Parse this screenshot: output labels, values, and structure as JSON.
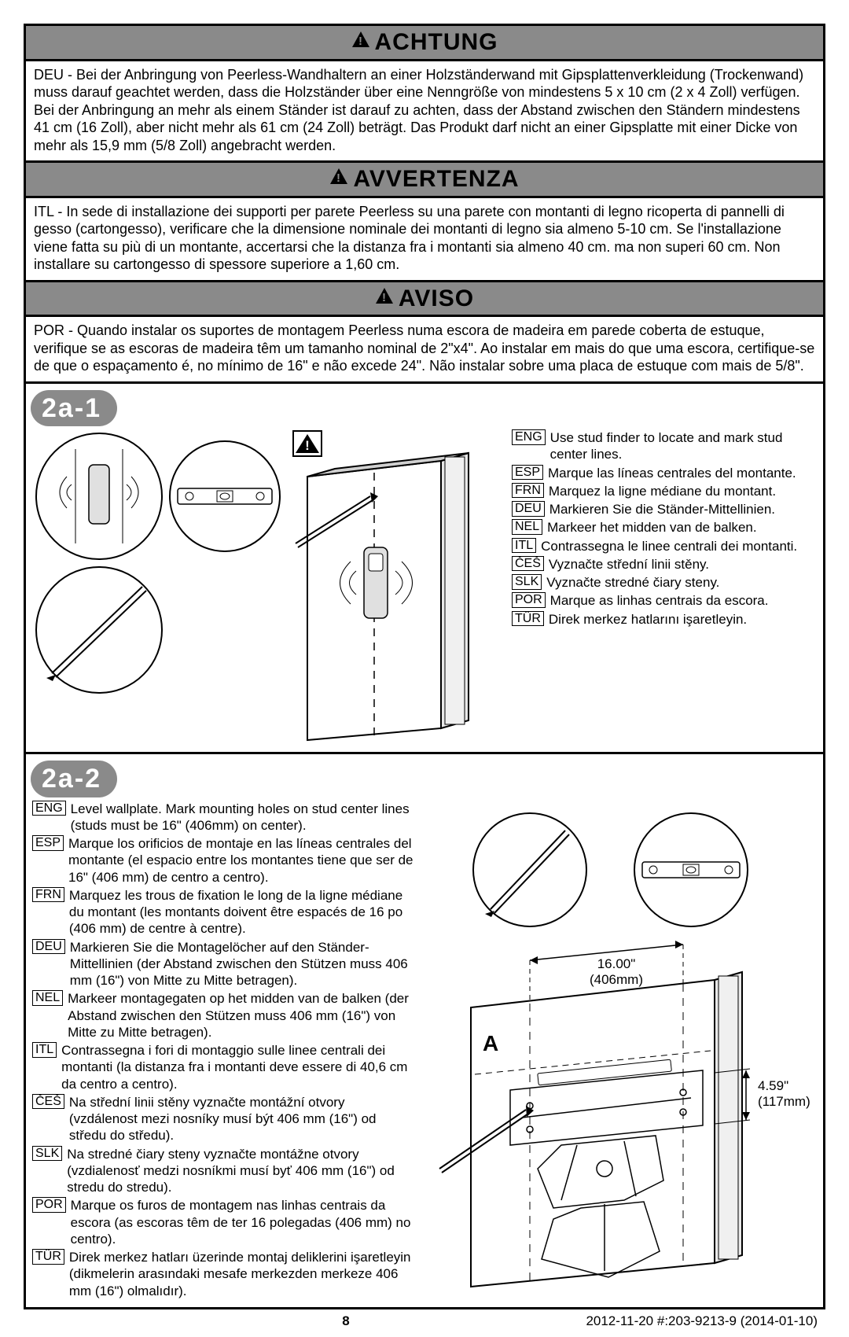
{
  "warnings": {
    "achtung": {
      "title": "ACHTUNG",
      "body": "DEU - Bei der Anbringung von Peerless-Wandhaltern an einer Holzständerwand mit Gipsplattenverkleidung (Trockenwand) muss darauf geachtet werden, dass die Holzständer über eine Nenngröße von mindestens 5 x 10 cm (2 x 4 Zoll) verfügen. Bei der Anbringung an mehr als einem Ständer ist darauf zu achten, dass der Abstand zwischen den Ständern mindestens 41 cm (16 Zoll), aber nicht mehr als 61 cm (24 Zoll) beträgt. Das Produkt darf nicht an einer Gipsplatte mit einer Dicke von mehr als 15,9 mm (5/8 Zoll) angebracht werden."
    },
    "avvertenza": {
      "title": "AVVERTENZA",
      "body": "ITL - In sede di installazione dei supporti per parete Peerless su una parete con montanti di legno ricoperta di pannelli di gesso (cartongesso), verificare che la dimensione nominale dei montanti di legno sia almeno 5-10 cm. Se l'installazione viene fatta su più di un montante, accertarsi che la distanza fra i montanti sia almeno 40 cm. ma non superi 60 cm. Non installare su cartongesso di spessore superiore a 1,60 cm."
    },
    "aviso": {
      "title": "AVISO",
      "body": "POR - Quando instalar os suportes de montagem Peerless numa escora de madeira em parede coberta de estuque, verifique se as escoras de madeira têm um tamanho nominal de 2\"x4\". Ao instalar em mais do que uma escora, certifique-se de que o espaçamento é, no mínimo de 16\" e não excede 24\". Não instalar sobre uma placa de estuque com mais de 5/8\"."
    }
  },
  "steps": {
    "s2a1": "2a-1",
    "s2a2": "2a-2"
  },
  "instructions_2a1": [
    {
      "lang": "ENG",
      "text": "Use stud finder to locate and mark stud center lines."
    },
    {
      "lang": "ESP",
      "text": "Marque las líneas centrales del montante."
    },
    {
      "lang": "FRN",
      "text": "Marquez la ligne médiane du montant."
    },
    {
      "lang": "DEU",
      "text": "Markieren Sie die Ständer-Mittellinien."
    },
    {
      "lang": "NEL",
      "text": "Markeer het midden van de balken."
    },
    {
      "lang": "ITL",
      "text": "Contrassegna le linee centrali dei montanti."
    },
    {
      "lang": "ČEŠ",
      "text": "Vyznačte střední linii stěny."
    },
    {
      "lang": "SLK",
      "text": "Vyznačte stredné čiary steny."
    },
    {
      "lang": "POR",
      "text": "Marque as linhas centrais da escora."
    },
    {
      "lang": "TÜR",
      "text": "Direk merkez hatlarını işaretleyin."
    }
  ],
  "instructions_2a2": [
    {
      "lang": "ENG",
      "text": "Level wallplate. Mark mounting holes on stud center lines (studs must be 16\" (406mm) on center)."
    },
    {
      "lang": "ESP",
      "text": "Marque los orificios de montaje en las líneas centrales del montante (el espacio entre los montantes tiene que ser de 16\" (406 mm) de centro a centro)."
    },
    {
      "lang": "FRN",
      "text": "Marquez les trous de fixation le long de la ligne médiane du montant (les montants doivent être espacés de 16 po (406 mm) de centre à centre)."
    },
    {
      "lang": "DEU",
      "text": "Markieren Sie die Montagelöcher auf den Ständer-Mittellinien (der Abstand zwischen den Stützen muss 406 mm (16\") von Mitte zu Mitte betragen)."
    },
    {
      "lang": "NEL",
      "text": "Markeer montagegaten op het midden van de balken (der Abstand zwischen den Stützen muss 406 mm (16\") von Mitte zu Mitte betragen)."
    },
    {
      "lang": "ITL",
      "text": "Contrassegna i fori di montaggio sulle linee centrali dei montanti (la distanza fra i montanti deve essere di 40,6 cm da centro a centro)."
    },
    {
      "lang": "ČEŠ",
      "text": "Na střední linii stěny vyznačte montážní otvory (vzdálenost mezi nosníky musí být 406 mm (16\") od středu do středu)."
    },
    {
      "lang": "SLK",
      "text": "Na stredné čiary steny vyznačte montážne otvory (vzdialenosť medzi nosníkmi musí byť 406 mm (16\") od stredu do stredu)."
    },
    {
      "lang": "POR",
      "text": "Marque os furos de montagem nas linhas centrais da escora (as escoras têm de ter 16 polegadas (406 mm) no centro)."
    },
    {
      "lang": "TÜR",
      "text": "Direk merkez hatları üzerinde montaj deliklerini işaretleyin (dikmelerin arasındaki mesafe merkezden merkeze 406 mm (16\") olmalıdır)."
    }
  ],
  "diagram_labels": {
    "a": "A",
    "dim1_a": "16.00\"",
    "dim1_b": "(406mm)",
    "dim2_a": "4.59\"",
    "dim2_b": "(117mm)"
  },
  "footer": {
    "page": "8",
    "info": "2012-11-20   #:203-9213-9  (2014-01-10)"
  },
  "colors": {
    "header_bg": "#8a8a8a",
    "badge_bg": "#8a8a8a",
    "badge_fg": "#ffffff",
    "border": "#000000"
  }
}
